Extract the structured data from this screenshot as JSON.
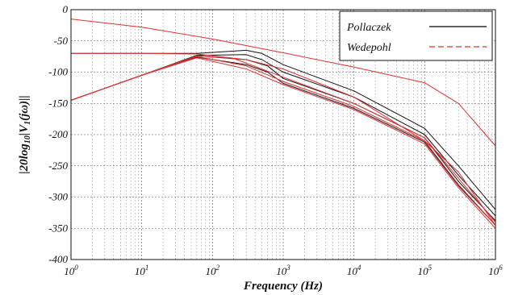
{
  "chart_data": {
    "type": "line",
    "title": "",
    "xlabel": "Frequency (Hz)",
    "ylabel": "|20log10|V1(jω)||",
    "ylabel_parts": {
      "pre": "|20log",
      "sub1": "10",
      "mid": "|V",
      "sub2": "1",
      "post": "(jω)||"
    },
    "x_scale": "log",
    "xlim": [
      1,
      1000000
    ],
    "ylim": [
      -400,
      0
    ],
    "grid": true,
    "legend_position": "top-right",
    "x_ticks": [
      {
        "value": 1,
        "label": "10",
        "exp": "0"
      },
      {
        "value": 10,
        "label": "10",
        "exp": "1"
      },
      {
        "value": 100,
        "label": "10",
        "exp": "2"
      },
      {
        "value": 1000,
        "label": "10",
        "exp": "3"
      },
      {
        "value": 10000,
        "label": "10",
        "exp": "4"
      },
      {
        "value": 100000,
        "label": "10",
        "exp": "5"
      },
      {
        "value": 1000000,
        "label": "10",
        "exp": "6"
      }
    ],
    "y_ticks": [
      {
        "value": 0,
        "label": "0"
      },
      {
        "value": -50,
        "label": "-50"
      },
      {
        "value": -100,
        "label": "-100"
      },
      {
        "value": -150,
        "label": "-150"
      },
      {
        "value": -200,
        "label": "-200"
      },
      {
        "value": -250,
        "label": "-250"
      },
      {
        "value": -300,
        "label": "-300"
      },
      {
        "value": -350,
        "label": "-350"
      },
      {
        "value": -400,
        "label": "-400"
      }
    ],
    "legend": [
      {
        "name": "Pollaczek",
        "color": "#000000",
        "style": "solid"
      },
      {
        "name": "Wedepohl",
        "color": "#e03030",
        "style": "dashed"
      }
    ],
    "series": [
      {
        "group": "Wedepohl",
        "color": "#e03030",
        "x": [
          1,
          10,
          100,
          1000,
          10000,
          100000,
          300000,
          1000000
        ],
        "y": [
          -15,
          -28,
          -47,
          -69,
          -92,
          -117,
          -150,
          -218
        ]
      },
      {
        "group": "Wedepohl",
        "color": "#e03030",
        "x": [
          1,
          10,
          60,
          300,
          1000,
          10000,
          100000,
          300000,
          1000000
        ],
        "y": [
          -70,
          -70,
          -71,
          -80,
          -95,
          -140,
          -210,
          -260,
          -345
        ]
      },
      {
        "group": "Wedepohl",
        "color": "#e03030",
        "x": [
          1,
          10,
          60,
          200,
          1000,
          10000,
          100000,
          300000,
          1000000
        ],
        "y": [
          -145,
          -105,
          -74,
          -78,
          -108,
          -150,
          -205,
          -270,
          -340
        ]
      },
      {
        "group": "Wedepohl",
        "color": "#e03030",
        "x": [
          1,
          10,
          60,
          300,
          1000,
          10000,
          100000,
          300000,
          1000000
        ],
        "y": [
          -145,
          -105,
          -75,
          -90,
          -115,
          -155,
          -210,
          -280,
          -345
        ]
      },
      {
        "group": "Wedepohl",
        "color": "#e03030",
        "x": [
          1,
          10,
          60,
          300,
          1000,
          10000,
          100000,
          300000,
          1000000
        ],
        "y": [
          -145,
          -105,
          -77,
          -95,
          -120,
          -160,
          -215,
          -285,
          -350
        ]
      },
      {
        "group": "Pollaczek",
        "color": "#111111",
        "x": [
          1,
          10,
          60,
          300,
          500,
          1000,
          10000,
          100000,
          300000,
          1000000
        ],
        "y": [
          -70,
          -70,
          -70,
          -65,
          -70,
          -88,
          -130,
          -190,
          -250,
          -320
        ]
      },
      {
        "group": "Pollaczek",
        "color": "#111111",
        "x": [
          1,
          10,
          60,
          300,
          500,
          1000,
          10000,
          100000,
          300000,
          1000000
        ],
        "y": [
          -145,
          -105,
          -73,
          -72,
          -80,
          -100,
          -140,
          -200,
          -265,
          -330
        ]
      },
      {
        "group": "Pollaczek",
        "color": "#111111",
        "x": [
          1,
          10,
          60,
          300,
          600,
          1000,
          10000,
          100000,
          300000,
          1000000
        ],
        "y": [
          -145,
          -105,
          -74,
          -80,
          -90,
          -110,
          -150,
          -205,
          -275,
          -338
        ]
      },
      {
        "group": "Pollaczek",
        "color": "#111111",
        "x": [
          1,
          10,
          60,
          300,
          600,
          1000,
          10000,
          100000,
          300000,
          1000000
        ],
        "y": [
          -145,
          -105,
          -76,
          -88,
          -100,
          -118,
          -158,
          -212,
          -282,
          -345
        ]
      }
    ]
  }
}
